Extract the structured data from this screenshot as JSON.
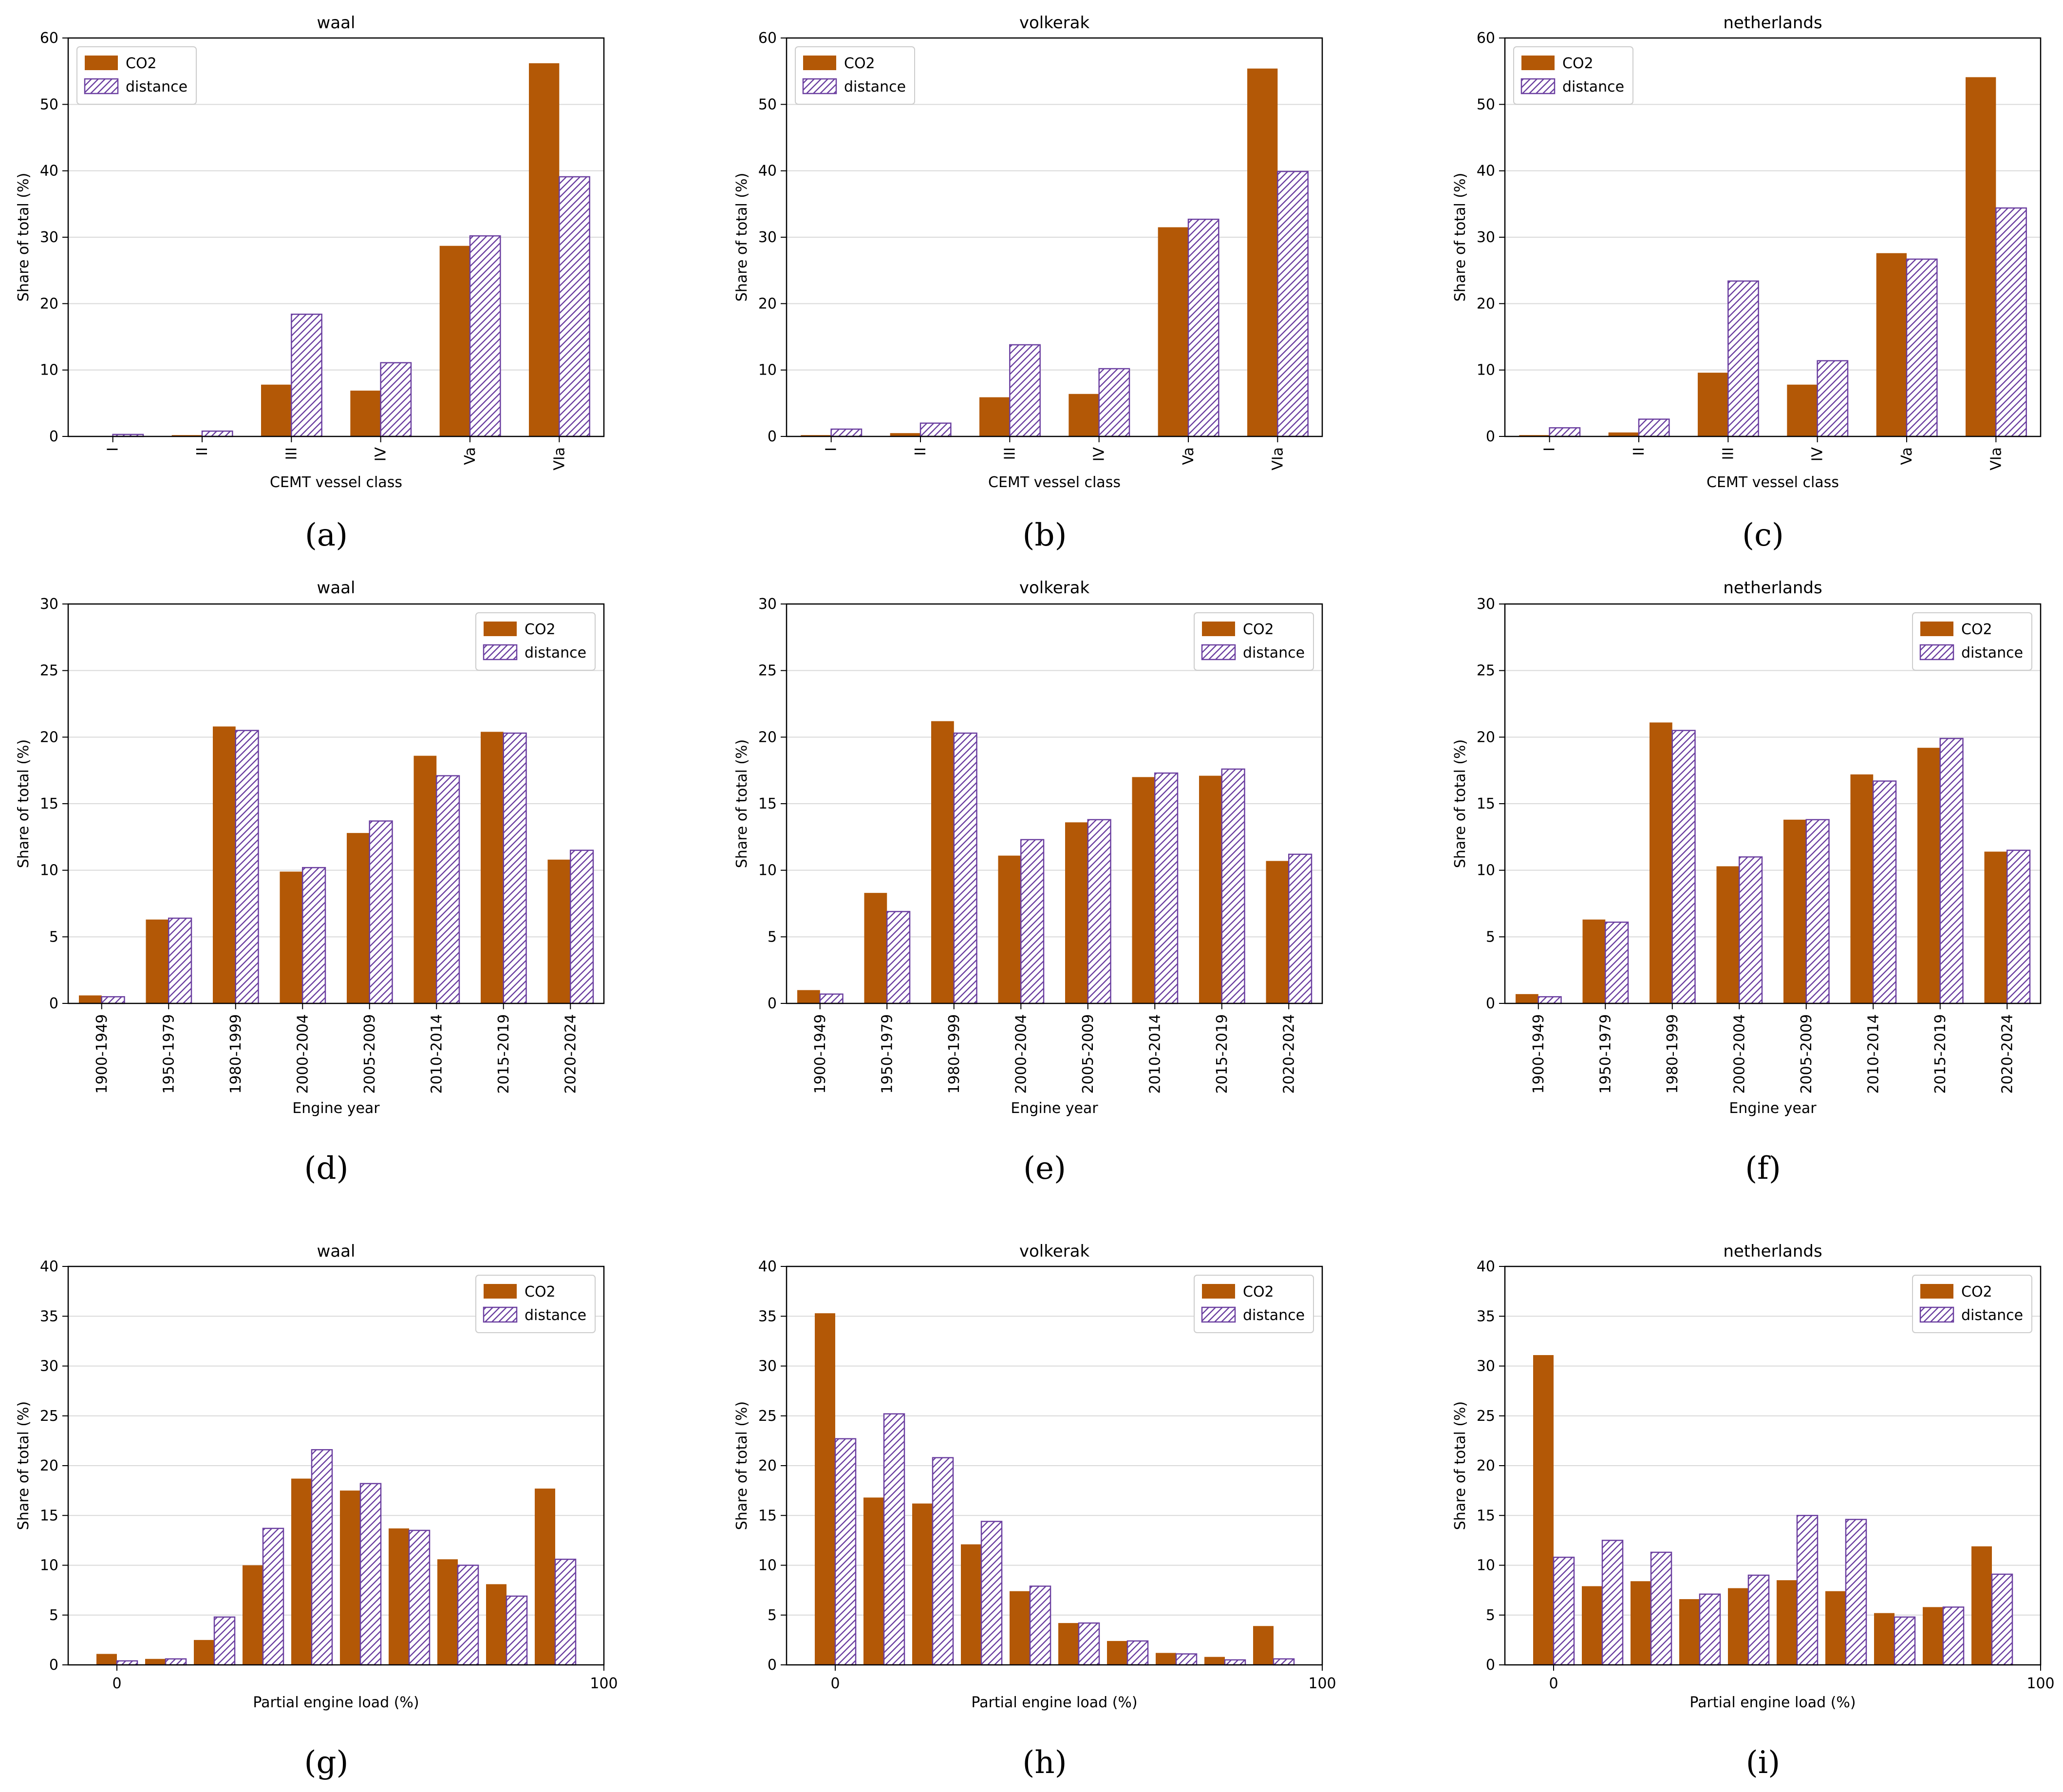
{
  "figure": {
    "legend": {
      "co2": "CO2",
      "distance": "distance"
    },
    "colors": {
      "co2": "#b35806",
      "distance_hatch": "#6b3fa0",
      "grid": "#d9d9d9"
    }
  },
  "chart_data": [
    {
      "type": "bar",
      "title": "waal",
      "xlabel": "CEMT vessel class",
      "ylabel": "Share of total (%)",
      "caption": "(a)",
      "ylim": [
        0,
        60
      ],
      "yticks": [
        "0",
        "10",
        "20",
        "30",
        "40",
        "50",
        "60"
      ],
      "categories": [
        "I",
        "II",
        "III",
        "IV",
        "Va",
        "VIa"
      ],
      "tick_rotation": -90,
      "legend_position": "top-left",
      "grid": true,
      "series": [
        {
          "name": "CO2",
          "values": [
            0.05,
            0.2,
            7.8,
            6.9,
            28.7,
            56.2
          ]
        },
        {
          "name": "distance",
          "values": [
            0.3,
            0.8,
            18.4,
            11.1,
            30.2,
            39.1
          ]
        }
      ]
    },
    {
      "type": "bar",
      "title": "volkerak",
      "xlabel": "CEMT vessel class",
      "ylabel": "Share of total (%)",
      "caption": "(b)",
      "ylim": [
        0,
        60
      ],
      "yticks": [
        "0",
        "10",
        "20",
        "30",
        "40",
        "50",
        "60"
      ],
      "categories": [
        "I",
        "II",
        "III",
        "IV",
        "Va",
        "VIa"
      ],
      "tick_rotation": -90,
      "legend_position": "top-left",
      "grid": true,
      "series": [
        {
          "name": "CO2",
          "values": [
            0.2,
            0.5,
            5.9,
            6.4,
            31.5,
            55.4
          ]
        },
        {
          "name": "distance",
          "values": [
            1.1,
            2.0,
            13.8,
            10.2,
            32.7,
            39.9
          ]
        }
      ]
    },
    {
      "type": "bar",
      "title": "netherlands",
      "xlabel": "CEMT vessel class",
      "ylabel": "Share of total (%)",
      "caption": "(c)",
      "ylim": [
        0,
        60
      ],
      "yticks": [
        "0",
        "10",
        "20",
        "30",
        "40",
        "50",
        "60"
      ],
      "categories": [
        "I",
        "II",
        "III",
        "IV",
        "Va",
        "VIa"
      ],
      "tick_rotation": -90,
      "legend_position": "top-left",
      "grid": true,
      "series": [
        {
          "name": "CO2",
          "values": [
            0.2,
            0.6,
            9.6,
            7.8,
            27.6,
            54.1
          ]
        },
        {
          "name": "distance",
          "values": [
            1.3,
            2.6,
            23.4,
            11.4,
            26.7,
            34.4
          ]
        }
      ]
    },
    {
      "type": "bar",
      "title": "waal",
      "xlabel": "Engine year",
      "ylabel": "Share of total (%)",
      "caption": "(d)",
      "ylim": [
        0,
        30
      ],
      "yticks": [
        "0",
        "5",
        "10",
        "15",
        "20",
        "25",
        "30"
      ],
      "categories": [
        "1900-1949",
        "1950-1979",
        "1980-1999",
        "2000-2004",
        "2005-2009",
        "2010-2014",
        "2015-2019",
        "2020-2024"
      ],
      "tick_rotation": -90,
      "legend_position": "top-right",
      "grid": true,
      "series": [
        {
          "name": "CO2",
          "values": [
            0.6,
            6.3,
            20.8,
            9.9,
            12.8,
            18.6,
            20.4,
            10.8
          ]
        },
        {
          "name": "distance",
          "values": [
            0.5,
            6.4,
            20.5,
            10.2,
            13.7,
            17.1,
            20.3,
            11.5
          ]
        }
      ]
    },
    {
      "type": "bar",
      "title": "volkerak",
      "xlabel": "Engine year",
      "ylabel": "Share of total (%)",
      "caption": "(e)",
      "ylim": [
        0,
        30
      ],
      "yticks": [
        "0",
        "5",
        "10",
        "15",
        "20",
        "25",
        "30"
      ],
      "categories": [
        "1900-1949",
        "1950-1979",
        "1980-1999",
        "2000-2004",
        "2005-2009",
        "2010-2014",
        "2015-2019",
        "2020-2024"
      ],
      "tick_rotation": -90,
      "legend_position": "top-right",
      "grid": true,
      "series": [
        {
          "name": "CO2",
          "values": [
            1.0,
            8.3,
            21.2,
            11.1,
            13.6,
            17.0,
            17.1,
            10.7
          ]
        },
        {
          "name": "distance",
          "values": [
            0.7,
            6.9,
            20.3,
            12.3,
            13.8,
            17.3,
            17.6,
            11.2
          ]
        }
      ]
    },
    {
      "type": "bar",
      "title": "netherlands",
      "xlabel": "Engine year",
      "ylabel": "Share of total (%)",
      "caption": "(f)",
      "ylim": [
        0,
        30
      ],
      "yticks": [
        "0",
        "5",
        "10",
        "15",
        "20",
        "25",
        "30"
      ],
      "categories": [
        "1900-1949",
        "1950-1979",
        "1980-1999",
        "2000-2004",
        "2005-2009",
        "2010-2014",
        "2015-2019",
        "2020-2024"
      ],
      "tick_rotation": -90,
      "legend_position": "top-right",
      "grid": true,
      "series": [
        {
          "name": "CO2",
          "values": [
            0.7,
            6.3,
            21.1,
            10.3,
            13.8,
            17.2,
            19.2,
            11.4
          ]
        },
        {
          "name": "distance",
          "values": [
            0.5,
            6.1,
            20.5,
            11.0,
            13.8,
            16.7,
            19.9,
            11.5
          ]
        }
      ]
    },
    {
      "type": "bar",
      "title": "waal",
      "xlabel": "Partial engine load (%)",
      "ylabel": "Share of total (%)",
      "caption": "(g)",
      "ylim": [
        0,
        40
      ],
      "yticks": [
        "0",
        "5",
        "10",
        "15",
        "20",
        "25",
        "30",
        "35",
        "40"
      ],
      "xlim": [
        -10,
        100
      ],
      "xticks": [
        0,
        100
      ],
      "bin_width": 10,
      "bins": [
        0,
        10,
        20,
        30,
        40,
        50,
        60,
        70,
        80,
        90
      ],
      "legend_position": "top-right",
      "grid": true,
      "series": [
        {
          "name": "CO2",
          "values": [
            1.1,
            0.6,
            2.5,
            10.0,
            18.7,
            17.5,
            13.7,
            10.6,
            8.1,
            17.7
          ]
        },
        {
          "name": "distance",
          "values": [
            0.4,
            0.6,
            4.8,
            13.7,
            21.6,
            18.2,
            13.5,
            10.0,
            6.9,
            10.6
          ]
        }
      ]
    },
    {
      "type": "bar",
      "title": "volkerak",
      "xlabel": "Partial engine load (%)",
      "ylabel": "Share of total (%)",
      "caption": "(h)",
      "ylim": [
        0,
        40
      ],
      "yticks": [
        "0",
        "5",
        "10",
        "15",
        "20",
        "25",
        "30",
        "35",
        "40"
      ],
      "xlim": [
        -10,
        100
      ],
      "xticks": [
        0,
        100
      ],
      "bin_width": 10,
      "bins": [
        0,
        10,
        20,
        30,
        40,
        50,
        60,
        70,
        80,
        90
      ],
      "legend_position": "top-right",
      "grid": true,
      "series": [
        {
          "name": "CO2",
          "values": [
            35.3,
            16.8,
            16.2,
            12.1,
            7.4,
            4.2,
            2.4,
            1.2,
            0.8,
            3.9
          ]
        },
        {
          "name": "distance",
          "values": [
            22.7,
            25.2,
            20.8,
            14.4,
            7.9,
            4.2,
            2.4,
            1.1,
            0.5,
            0.6
          ]
        }
      ]
    },
    {
      "type": "bar",
      "title": "netherlands",
      "xlabel": "Partial engine load (%)",
      "ylabel": "Share of total (%)",
      "caption": "(i)",
      "ylim": [
        0,
        40
      ],
      "yticks": [
        "0",
        "5",
        "10",
        "15",
        "20",
        "25",
        "30",
        "35",
        "40"
      ],
      "xlim": [
        -10,
        100
      ],
      "xticks": [
        0,
        100
      ],
      "bin_width": 10,
      "bins": [
        0,
        10,
        20,
        30,
        40,
        50,
        60,
        70,
        80,
        90
      ],
      "legend_position": "top-right",
      "grid": true,
      "series": [
        {
          "name": "CO2",
          "values": [
            31.1,
            7.9,
            8.4,
            6.6,
            7.7,
            8.5,
            7.4,
            5.2,
            5.8,
            11.9
          ]
        },
        {
          "name": "distance",
          "values": [
            10.8,
            12.5,
            11.3,
            7.1,
            9.0,
            15.0,
            14.6,
            4.8,
            5.8,
            9.1
          ]
        }
      ]
    }
  ]
}
